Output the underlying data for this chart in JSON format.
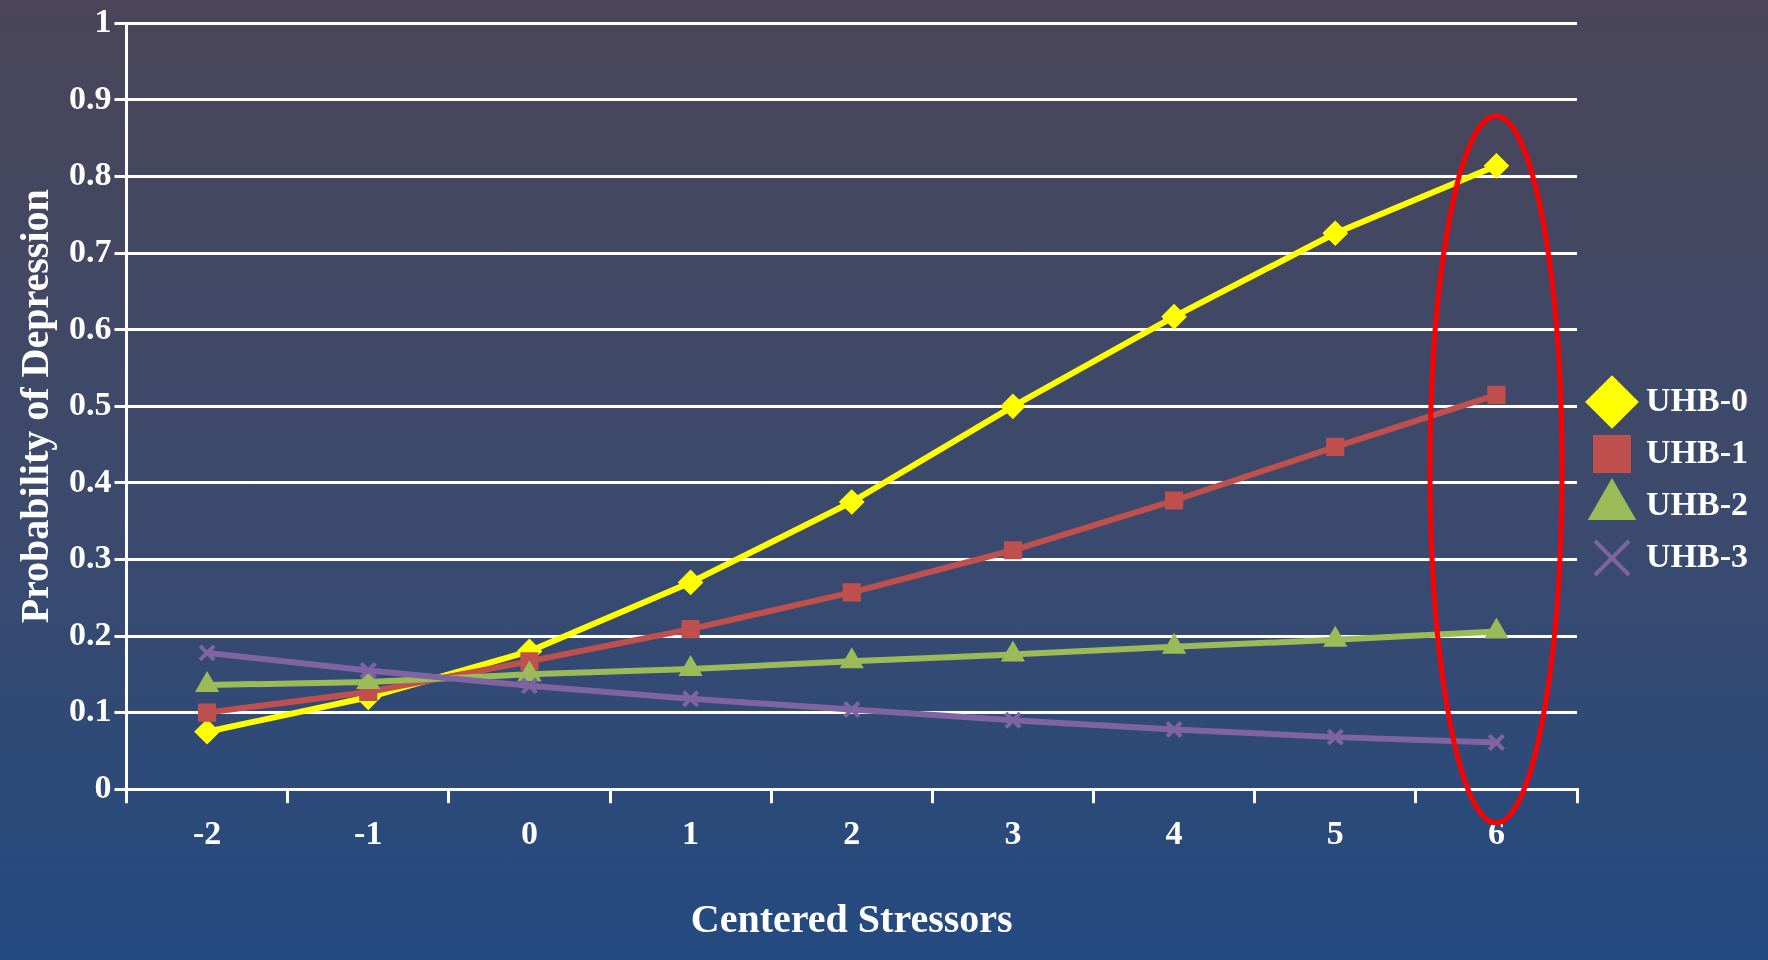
{
  "chart_data": {
    "type": "line",
    "xlabel": "Centered Stressors",
    "ylabel": "Probability of Depression",
    "categories": [
      "-2",
      "-1",
      "0",
      "1",
      "2",
      "3",
      "4",
      "5",
      "6"
    ],
    "series": [
      {
        "name": "UHB-0",
        "color": "#ffff00",
        "marker": "diamond",
        "values": [
          0.075,
          0.12,
          0.18,
          0.27,
          0.375,
          0.5,
          0.617,
          0.726,
          0.814
        ]
      },
      {
        "name": "UHB-1",
        "color": "#c0504d",
        "marker": "square",
        "values": [
          0.1,
          0.127,
          0.167,
          0.209,
          0.257,
          0.312,
          0.377,
          0.447,
          0.515
        ]
      },
      {
        "name": "UHB-2",
        "color": "#9bbb59",
        "marker": "triangle",
        "values": [
          0.136,
          0.14,
          0.15,
          0.157,
          0.167,
          0.176,
          0.186,
          0.195,
          0.206
        ]
      },
      {
        "name": "UHB-3",
        "color": "#8064a2",
        "marker": "cross",
        "values": [
          0.178,
          0.155,
          0.135,
          0.118,
          0.104,
          0.09,
          0.078,
          0.068,
          0.061
        ]
      }
    ],
    "ylim": [
      0,
      1
    ],
    "yticks": [
      0,
      0.1,
      0.2,
      0.3,
      0.4,
      0.5,
      0.6,
      0.7,
      0.8,
      0.9,
      1
    ],
    "grid": "y",
    "legend": "right",
    "line_style": "solid"
  }
}
